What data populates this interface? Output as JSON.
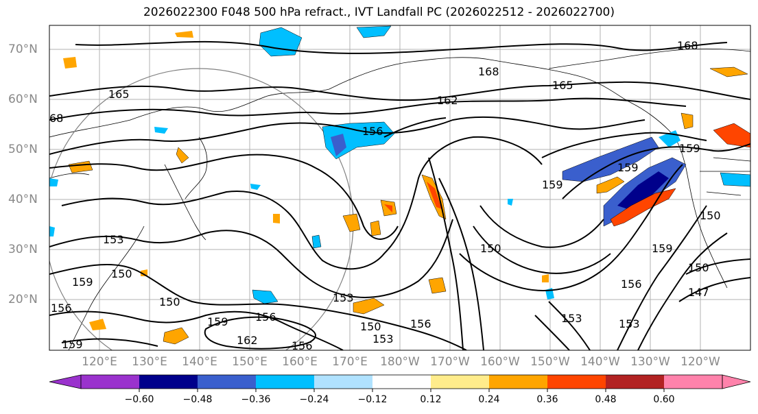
{
  "title": "2026022300 F048 500 hPa refract., IVT Landfall PC (2026022512 - 2026022700)",
  "lat_labels": [
    "70°N",
    "60°N",
    "50°N",
    "40°N",
    "30°N",
    "20°N"
  ],
  "lon_labels": [
    "120°E",
    "130°E",
    "140°E",
    "150°E",
    "160°E",
    "170°E",
    "180°W",
    "170°W",
    "160°W",
    "150°W",
    "140°W",
    "130°W",
    "120°W"
  ],
  "contour_labels": {
    "c168a": "168",
    "c168b": "168",
    "c168c": "68",
    "c165a": "165",
    "c165b": "165",
    "c162a": "162",
    "c162b": "162",
    "c159a": "159",
    "c159b": "159",
    "c159c": "159",
    "c159d": "159",
    "c159e": "159",
    "c159f": "159",
    "c159g": "159",
    "c156a": "156",
    "c156b": "156",
    "c156c": "156",
    "c156d": "156",
    "c156e": "156",
    "c156f": "156",
    "c153a": "153",
    "c153b": "153",
    "c153c": "153",
    "c153d": "153",
    "c153e": "153",
    "c150a": "150",
    "c150b": "150",
    "c150c": "150",
    "c150d": "150",
    "c150e": "150",
    "c150f": "150",
    "c147a": "147"
  },
  "colorbar": {
    "ticks": [
      "−0.60",
      "−0.48",
      "−0.36",
      "−0.24",
      "−0.12",
      "0.12",
      "0.24",
      "0.36",
      "0.48",
      "0.60"
    ],
    "colors": [
      "#9a32cd",
      "#00008b",
      "#3a5fcd",
      "#00bfff",
      "#b0e2ff",
      "#ffffff",
      "#ffec8b",
      "#ffa500",
      "#ff4500",
      "#b22222",
      "#ff82ab"
    ]
  }
}
